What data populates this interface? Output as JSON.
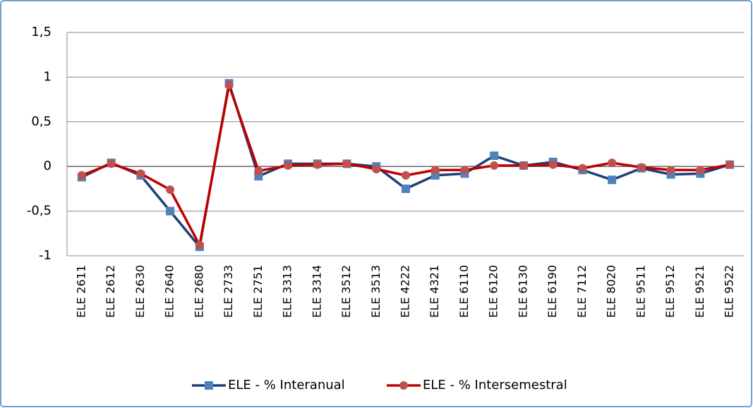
{
  "chart_data": {
    "type": "line",
    "categories": [
      "ELE 2611",
      "ELE 2612",
      "ELE 2630",
      "ELE 2640",
      "ELE 2680",
      "ELE 2733",
      "ELE 2751",
      "ELE 3313",
      "ELE 3314",
      "ELE 3512",
      "ELE 3513",
      "ELE 4222",
      "ELE 4321",
      "ELE 6110",
      "ELE 6120",
      "ELE 6130",
      "ELE 6190",
      "ELE 7112",
      "ELE 8020",
      "ELE 9511",
      "ELE 9512",
      "ELE 9521",
      "ELE 9522"
    ],
    "series": [
      {
        "name": "ELE - % Interanual",
        "color": "#1f3f77",
        "marker_color": "#4f81bd",
        "marker": "square",
        "values": [
          -0.12,
          0.04,
          -0.1,
          -0.5,
          -0.9,
          0.93,
          -0.11,
          0.03,
          0.03,
          0.03,
          0,
          -0.25,
          -0.1,
          -0.08,
          0.12,
          0.01,
          0.05,
          -0.04,
          -0.15,
          -0.02,
          -0.09,
          -0.08,
          0.02
        ]
      },
      {
        "name": "ELE - % Intersemestral",
        "color": "#c00000",
        "marker_color": "#c0504d",
        "marker": "circle",
        "values": [
          -0.1,
          0.03,
          -0.08,
          -0.26,
          -0.88,
          0.91,
          -0.05,
          0.01,
          0.02,
          0.03,
          -0.03,
          -0.1,
          -0.04,
          -0.04,
          0.01,
          0.01,
          0.02,
          -0.02,
          0.04,
          -0.01,
          -0.04,
          -0.04,
          0.02
        ]
      }
    ],
    "ylim": [
      -1,
      1.5
    ],
    "yticks": [
      -1,
      {
        "value": -0.5,
        "label": "-0,5"
      },
      0,
      {
        "value": 0.5,
        "label": "0,5"
      },
      1,
      {
        "value": 1.5,
        "label": "1,5"
      }
    ],
    "grid": true,
    "legend": "bottom"
  }
}
